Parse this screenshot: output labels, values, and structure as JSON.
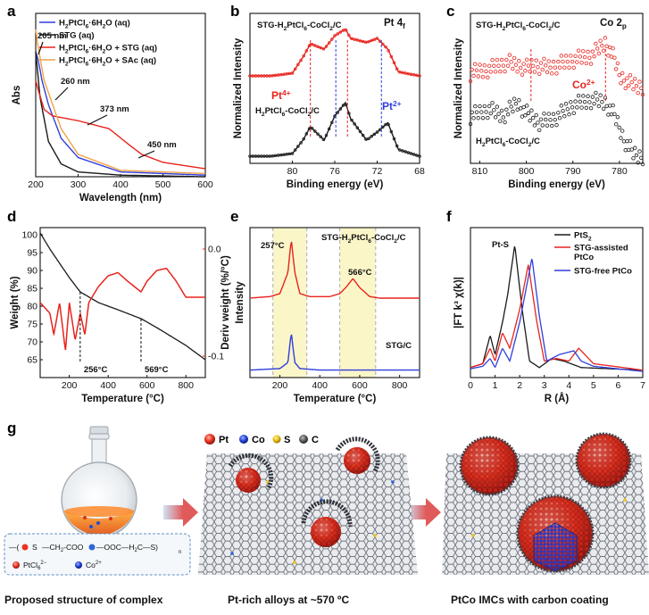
{
  "panel_labels": {
    "a": "a",
    "b": "b",
    "c": "c",
    "d": "d",
    "e": "e",
    "f": "f",
    "g": "g"
  },
  "colors": {
    "black": "#1a1a1a",
    "red": "#e8231d",
    "blue": "#2f3fdc",
    "orange": "#f3a247",
    "yellow_band": "#fbf6c8"
  },
  "chart_data": [
    {
      "id": "a",
      "type": "line",
      "xlabel": "Wavelength (nm)",
      "ylabel": "Abs",
      "xlim": [
        200,
        600
      ],
      "xticks": [
        200,
        300,
        400,
        500,
        600
      ],
      "series": [
        {
          "name": "H2PtCl6·6H2O (aq)",
          "color": "#2f3fdc",
          "x": [
            200,
            205,
            215,
            230,
            260,
            300,
            400,
            600
          ],
          "y": [
            0.78,
            0.74,
            0.6,
            0.45,
            0.24,
            0.12,
            0.03,
            0.01
          ]
        },
        {
          "name": "STG (aq)",
          "color": "#1a1a1a",
          "x": [
            200,
            210,
            230,
            260,
            300,
            400,
            600
          ],
          "y": [
            0.78,
            0.5,
            0.22,
            0.08,
            0.03,
            0.01,
            0.0
          ]
        },
        {
          "name": "H2PtCl6·6H2O + STG (aq)",
          "color": "#e8231d",
          "x": [
            200,
            205,
            220,
            240,
            260,
            300,
            373,
            420,
            450,
            500,
            600
          ],
          "y": [
            0.6,
            0.55,
            0.42,
            0.38,
            0.37,
            0.35,
            0.3,
            0.2,
            0.14,
            0.09,
            0.05
          ]
        },
        {
          "name": "H2PtCl6·6H2O + SAc (aq)",
          "color": "#f3a247",
          "x": [
            200,
            205,
            220,
            240,
            260,
            300,
            400,
            600
          ],
          "y": [
            0.92,
            0.82,
            0.6,
            0.45,
            0.3,
            0.14,
            0.04,
            0.02
          ]
        }
      ],
      "legend_labels": [
        [
          "H",
          "2",
          "PtCl",
          "6",
          "·6H",
          "2",
          "O (aq)"
        ],
        [
          "STG (aq)"
        ],
        [
          "H",
          "2",
          "PtCl",
          "6",
          "·6H",
          "2",
          "O + STG (aq)"
        ],
        [
          "H",
          "2",
          "PtCl",
          "6",
          "·6H",
          "2",
          "O + SAc (aq)"
        ]
      ],
      "annotations": [
        "205 nm",
        "260 nm",
        "373 nm",
        "450 nm"
      ]
    },
    {
      "id": "b",
      "type": "line",
      "xlabel": "Binding energy (eV)",
      "ylabel": "Normalized Intensity",
      "title": "Pt 4f",
      "title_parts": [
        "Pt 4",
        "f"
      ],
      "xlim": [
        84,
        68
      ],
      "xticks": [
        80,
        76,
        72,
        68
      ],
      "series": [
        {
          "name": "STG-H2PtCl6-CoCl2/C",
          "color": "#e8231d",
          "x": [
            84,
            82,
            80,
            79,
            78.3,
            77,
            76,
            75,
            74.5,
            73,
            72,
            71,
            70,
            68
          ],
          "y": [
            0.6,
            0.6,
            0.62,
            0.74,
            0.84,
            0.8,
            0.9,
            0.95,
            0.88,
            0.85,
            0.88,
            0.8,
            0.63,
            0.6
          ]
        },
        {
          "name": "H2PtCl6-CoCl2/C",
          "color": "#1a1a1a",
          "x": [
            84,
            82,
            80,
            79,
            78.3,
            77,
            76,
            75,
            74.5,
            73,
            72,
            71,
            70,
            68
          ],
          "y": [
            0.0,
            0.0,
            0.02,
            0.12,
            0.22,
            0.12,
            0.3,
            0.4,
            0.28,
            0.12,
            0.18,
            0.25,
            0.05,
            0.0
          ]
        }
      ],
      "labels": {
        "red": [
          "STG-H",
          "2",
          "PtCl",
          "6",
          "-CoCl",
          "2",
          "/C"
        ],
        "black": [
          "H",
          "2",
          "PtCl",
          "6",
          "-CoCl",
          "2",
          "/C"
        ],
        "pt4": [
          "Pt",
          "4+"
        ],
        "pt2": [
          "Pt",
          "2+"
        ]
      }
    },
    {
      "id": "c",
      "type": "scatter",
      "xlabel": "Binding energy (eV)",
      "ylabel": "Normalized Intensity",
      "title": "Co 2p",
      "title_parts": [
        "Co 2",
        "p"
      ],
      "xlim": [
        812,
        775
      ],
      "xticks": [
        810,
        800,
        790,
        780
      ],
      "series": [
        {
          "name": "STG-H2PtCl6-CoCl2/C",
          "color": "#e8231d",
          "x": [
            812,
            808,
            804,
            800,
            798,
            795,
            790,
            786,
            783,
            781,
            780,
            778,
            776
          ],
          "y": [
            0.62,
            0.65,
            0.7,
            0.66,
            0.68,
            0.66,
            0.72,
            0.75,
            0.85,
            0.72,
            0.6,
            0.55,
            0.52
          ]
        },
        {
          "name": "H2PtCl6-CoCl2/C",
          "color": "#1a1a1a",
          "x": [
            812,
            808,
            805,
            802,
            800,
            797,
            794,
            790,
            786,
            783,
            781,
            779,
            777,
            776
          ],
          "y": [
            0.3,
            0.35,
            0.3,
            0.4,
            0.32,
            0.25,
            0.28,
            0.38,
            0.42,
            0.4,
            0.3,
            0.12,
            0.02,
            0.0
          ]
        }
      ],
      "labels": {
        "red": [
          "STG-H",
          "2",
          "PtCl",
          "6",
          "-CoCl",
          "2",
          "/C"
        ],
        "black": [
          "H",
          "2",
          "PtCl",
          "6",
          "-CoCl",
          "2",
          "/C"
        ],
        "co": [
          "Co",
          "2+"
        ]
      }
    },
    {
      "id": "d",
      "type": "line",
      "xlabel": "Temperature (°C)",
      "ylabel": "Weight (%)",
      "y2label": "Deriv weight (%/°C)",
      "xlim": [
        50,
        900
      ],
      "ylim": [
        60,
        102
      ],
      "y2lim": [
        -0.12,
        0.02
      ],
      "xticks": [
        200,
        400,
        600,
        800
      ],
      "yticks": [
        65,
        70,
        75,
        80,
        85,
        90,
        95,
        100
      ],
      "y2ticks": [
        0.0,
        -0.1
      ],
      "y2ticklabels": [
        "0.0",
        "-0.1"
      ],
      "series": [
        {
          "name": "Weight",
          "color": "#1a1a1a",
          "x": [
            50,
            100,
            200,
            256,
            350,
            450,
            569,
            650,
            800,
            900
          ],
          "y": [
            100.5,
            96,
            88,
            84,
            81,
            79,
            76.5,
            74,
            69,
            65
          ]
        },
        {
          "name": "Deriv weight",
          "color": "#e8231d",
          "x": [
            50,
            100,
            120,
            150,
            180,
            200,
            230,
            256,
            280,
            300,
            350,
            400,
            450,
            500,
            569,
            600,
            650,
            700,
            750,
            800,
            900
          ],
          "y": [
            -0.05,
            -0.06,
            -0.08,
            -0.05,
            -0.095,
            -0.05,
            -0.085,
            -0.06,
            -0.08,
            -0.05,
            -0.035,
            -0.025,
            -0.022,
            -0.03,
            -0.04,
            -0.03,
            -0.02,
            -0.018,
            -0.03,
            -0.045,
            -0.045
          ]
        }
      ],
      "annotations": [
        "256°C",
        "569°C"
      ]
    },
    {
      "id": "e",
      "type": "line",
      "xlabel": "Temperature (°C)",
      "ylabel": "Intensity",
      "xlim": [
        50,
        900
      ],
      "xticks": [
        200,
        400,
        600,
        800
      ],
      "series": [
        {
          "name": "STG-H2PtCl6-CoCl2/C",
          "color": "#e8231d",
          "x": [
            50,
            150,
            200,
            240,
            257,
            275,
            300,
            350,
            400,
            450,
            500,
            530,
            566,
            600,
            650,
            700,
            900
          ],
          "y": [
            0.53,
            0.54,
            0.56,
            0.7,
            0.92,
            0.7,
            0.56,
            0.54,
            0.54,
            0.54,
            0.56,
            0.6,
            0.66,
            0.6,
            0.54,
            0.53,
            0.53
          ]
        },
        {
          "name": "STG/C",
          "color": "#2f3fdc",
          "x": [
            50,
            200,
            240,
            257,
            275,
            300,
            400,
            900
          ],
          "y": [
            0.05,
            0.06,
            0.1,
            0.3,
            0.1,
            0.06,
            0.05,
            0.05
          ]
        }
      ],
      "annotations": [
        "257°C",
        "566°C"
      ],
      "bands": [
        [
          165,
          335
        ],
        [
          500,
          680
        ]
      ],
      "labels": {
        "red": [
          "STG-H",
          "2",
          "PtCl",
          "6",
          "-CoCl",
          "2",
          "/C"
        ],
        "blue": [
          "STG/C"
        ]
      }
    },
    {
      "id": "f",
      "type": "line",
      "xlabel": "R (Å)",
      "ylabel": "|FT k³ χ(k)|",
      "xlim": [
        0,
        7
      ],
      "xticks": [
        0,
        1,
        2,
        3,
        4,
        5,
        6,
        7
      ],
      "series": [
        {
          "name": "PtS2",
          "color": "#1a1a1a",
          "x": [
            0,
            0.5,
            0.8,
            1.0,
            1.3,
            1.5,
            1.8,
            2.1,
            2.4,
            2.8,
            3.3,
            3.8,
            4.5,
            7
          ],
          "y": [
            0.05,
            0.08,
            0.3,
            0.15,
            0.4,
            0.6,
            1.0,
            0.5,
            0.1,
            0.05,
            0.12,
            0.1,
            0.05,
            0.03
          ]
        },
        {
          "name": "STG-assisted PtCo",
          "color": "#e8231d",
          "x": [
            0,
            0.5,
            0.8,
            1.0,
            1.3,
            1.6,
            2.0,
            2.35,
            2.7,
            3.0,
            3.5,
            4.0,
            4.4,
            5,
            7
          ],
          "y": [
            0.05,
            0.08,
            0.2,
            0.1,
            0.32,
            0.2,
            0.5,
            0.85,
            0.4,
            0.1,
            0.12,
            0.1,
            0.2,
            0.08,
            0.03
          ]
        },
        {
          "name": "STG-free PtCo",
          "color": "#2f3fdc",
          "x": [
            0,
            0.5,
            0.8,
            1.0,
            1.3,
            1.6,
            2.0,
            2.5,
            2.8,
            3.1,
            3.6,
            4.2,
            4.5,
            5,
            7
          ],
          "y": [
            0.04,
            0.06,
            0.12,
            0.05,
            0.2,
            0.1,
            0.4,
            0.9,
            0.45,
            0.1,
            0.15,
            0.18,
            0.1,
            0.06,
            0.02
          ]
        }
      ],
      "legend_labels": [
        [
          "PtS",
          "2"
        ],
        [
          "STG-assisted"
        ],
        [
          "PtCo"
        ],
        [
          "STG-free PtCo"
        ]
      ],
      "annotations": [
        "Pt-S"
      ]
    }
  ],
  "schematic": {
    "legend": {
      "pt": "Pt",
      "co": "Co",
      "s": "S",
      "c": "C"
    },
    "formula": {
      "left": "—(",
      "s1": "S",
      "ch2coo": "CH",
      "ch2coo_sub": "2",
      "coo": "-COO",
      "ooc": "OOC",
      "h2c": "H",
      "h2c_sub": "2",
      "c": "C",
      "s2": "S",
      "n": "n"
    },
    "ion_pt": "PtCl",
    "ion_pt_sup": "6",
    "ion_pt_sup2": "2−",
    "ion_co": "Co",
    "ion_co_sup": "2+",
    "captions": [
      "Proposed structure of complex",
      "Pt-rich alloys at ~570 ºC",
      "PtCo IMCs with carbon coating"
    ]
  }
}
